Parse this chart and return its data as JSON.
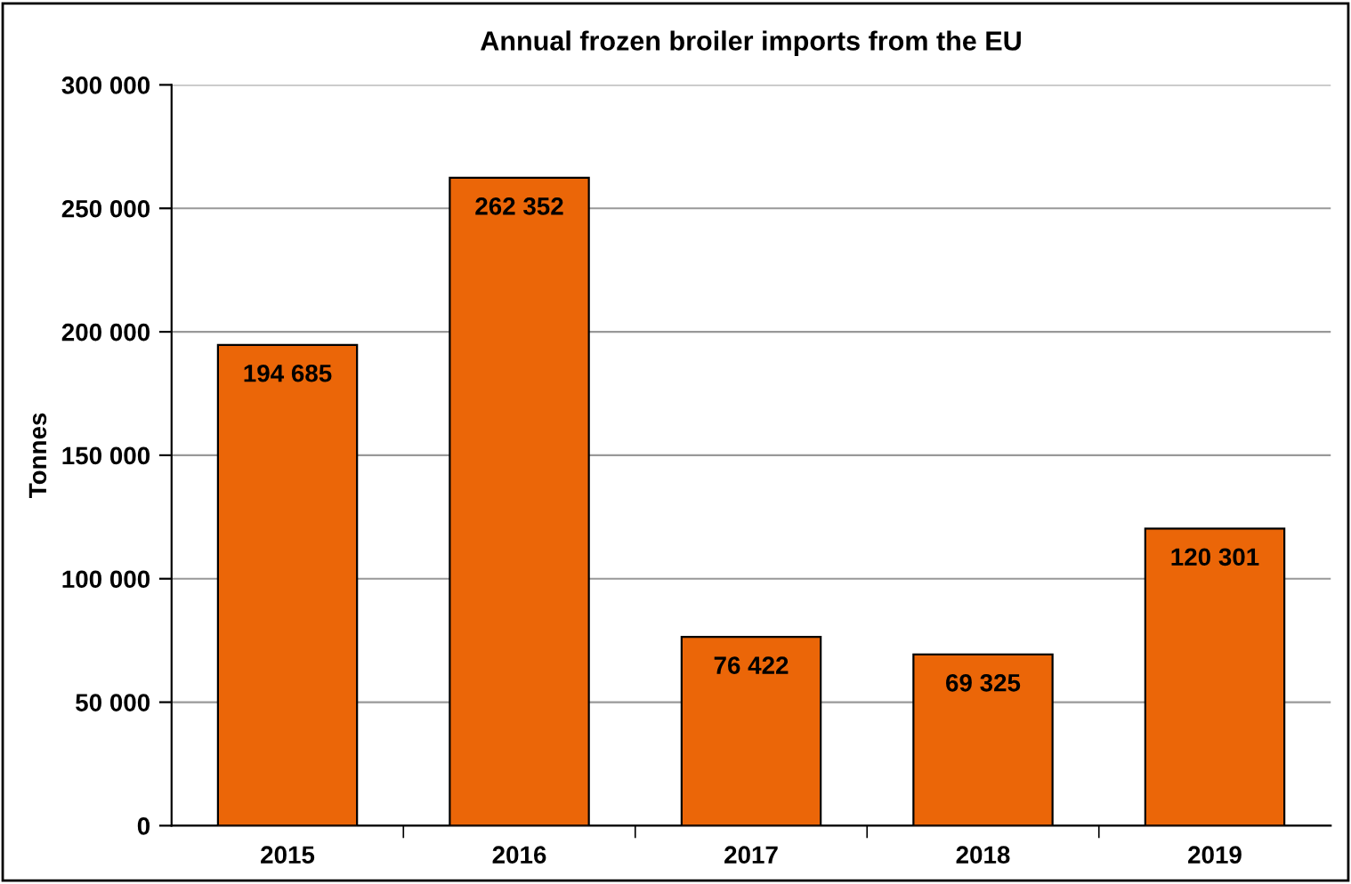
{
  "chart_data": {
    "type": "bar",
    "title": "Annual frozen broiler imports from the EU",
    "ylabel": "Tonnes",
    "categories": [
      "2015",
      "2016",
      "2017",
      "2018",
      "2019"
    ],
    "values": [
      194685,
      262352,
      76422,
      69325,
      120301
    ],
    "value_labels": [
      "194 685",
      "262 352",
      "76 422",
      "69 325",
      "120 301"
    ],
    "color": "#eb6608",
    "ylim": [
      0,
      300000
    ],
    "yticks": [
      {
        "value": 0,
        "label": "0"
      },
      {
        "value": 50000,
        "label": "50 000"
      },
      {
        "value": 100000,
        "label": "100 000"
      },
      {
        "value": 150000,
        "label": "150 000"
      },
      {
        "value": 200000,
        "label": "200 000"
      },
      {
        "value": 250000,
        "label": "250 000"
      },
      {
        "value": 300000,
        "label": "300 000"
      }
    ],
    "grid": "y"
  }
}
